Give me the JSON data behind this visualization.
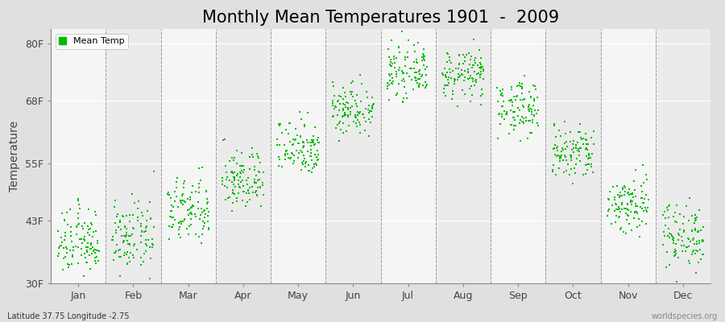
{
  "title": "Monthly Mean Temperatures 1901  -  2009",
  "ylabel": "Temperature",
  "bottom_left_text": "Latitude 37.75 Longitude -2.75",
  "bottom_right_text": "worldspecies.org",
  "legend_label": "Mean Temp",
  "yticks": [
    30,
    43,
    55,
    68,
    80
  ],
  "ytick_labels": [
    "30F",
    "43F",
    "55F",
    "68F",
    "80F"
  ],
  "months": [
    "Jan",
    "Feb",
    "Mar",
    "Apr",
    "May",
    "Jun",
    "Jul",
    "Aug",
    "Sep",
    "Oct",
    "Nov",
    "Dec"
  ],
  "dot_color": "#00bb00",
  "bg_color": "#e0e0e0",
  "plot_bg_color": "#f5f5f5",
  "alt_band_color": "#ebebeb",
  "title_fontsize": 15,
  "n_years": 109,
  "monthly_means_F": [
    38.5,
    39.5,
    45.0,
    51.5,
    58.5,
    66.5,
    74.0,
    73.5,
    66.5,
    57.0,
    46.5,
    40.0
  ],
  "monthly_stds_F": [
    3.5,
    3.5,
    3.5,
    3.2,
    3.0,
    2.8,
    2.5,
    2.5,
    2.8,
    3.0,
    3.2,
    3.5
  ]
}
